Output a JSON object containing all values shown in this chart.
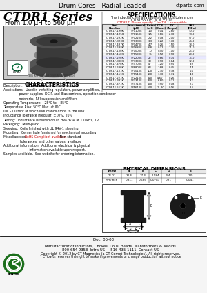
{
  "title_header": "Drum Cores - Radial Leaded",
  "website": "ctparts.com",
  "series_title": "CTDR1 Series",
  "series_subtitle": "From 1.0 μH to 560 μH",
  "specs_title": "SPECIFICATIONS",
  "specs_subtitle1": "The inductance is available at various tolerances",
  "specs_subtitle2": "1.0 to 560μH, M = ±20%",
  "specs_note": "CTDR1Z: Please specify T for TM-1 compatible",
  "characteristics_title": "CHARACTERISTICS",
  "char_lines": [
    "Description:   Radial leaded drum core inductor",
    "Applications:  Used in switching regulators, power amplifiers,",
    "               power supplies, DC-R and Bias controls, operation condenser",
    "               networks, RFI suppression and filters",
    "Operating Temperature:  -25°C to +85°C",
    "Temperature Rise: 50°C Max. at IDC",
    "IDC - Current at which inductance drops to the Max.",
    "Inductance Tolerance Irregular: ±10%, 20%",
    "Testing:  Inductance is tested on an HP4263A at 1.0 kHz, 1V",
    "Packaging:  Multi-pack",
    "Sleeving:  Coils finished with UL 94V-1 sleeving",
    "Mounting:  Center hole furnished for mechanical mounting",
    "Miscellaneous:  RoHS-Compliant available. Non-standard",
    "                tolerances, and other values, available",
    "Additional information:  Additional electrical & physical",
    "                         information available upon request.",
    "Samples available.  See website for ordering information."
  ],
  "phys_dim_title": "PHYSICAL DIMENSIONS",
  "phys_table_headers": [
    "(mm)",
    "A",
    "B",
    "C",
    "D",
    "E"
  ],
  "phys_table_row1": [
    "DR-01",
    "20.6",
    "17.4",
    "1.984",
    "5.4",
    "1.0"
  ],
  "phys_table_row2": [
    "mm/inch",
    "0.811",
    "0.685",
    "0.0781",
    "0.21",
    "0.041"
  ],
  "spec_data": [
    [
      "CTDR1F-1R0K",
      "SP01008",
      "1.0",
      "0.14",
      "2.80",
      "90.0"
    ],
    [
      "CTDR1F-1R5K",
      "SP01508",
      "1.5",
      "0.16",
      "2.30",
      "73.0"
    ],
    [
      "CTDR1F-2R2K",
      "SP02208",
      "2.2",
      "0.18",
      "2.00",
      "57.0"
    ],
    [
      "CTDR1F-3R3K",
      "SP03308",
      "3.3",
      "0.22",
      "1.70",
      "46.0"
    ],
    [
      "CTDR1F-4R7K",
      "SP04708",
      "4.7",
      "0.26",
      "1.50",
      "38.0"
    ],
    [
      "CTDR1F-6R8K",
      "SP06808",
      "6.8",
      "0.32",
      "1.30",
      "31.0"
    ],
    [
      "CTDR1F-100K",
      "SP10008",
      "10",
      "0.40",
      "1.10",
      "25.0"
    ],
    [
      "CTDR1F-150K",
      "SP15008",
      "15",
      "0.52",
      "0.90",
      "20.0"
    ],
    [
      "CTDR1F-220K",
      "SP22008",
      "22",
      "0.66",
      "0.75",
      "15.0"
    ],
    [
      "CTDR1F-330K",
      "SP33008",
      "33",
      "0.90",
      "0.64",
      "12.0"
    ],
    [
      "CTDR1F-470K",
      "SP47008",
      "47",
      "1.20",
      "0.55",
      "9.5"
    ],
    [
      "CTDR1F-680K",
      "SP68008",
      "68",
      "1.68",
      "0.45",
      "7.5"
    ],
    [
      "CTDR1F-101K",
      "SP10108",
      "100",
      "2.30",
      "0.38",
      "6.0"
    ],
    [
      "CTDR1F-151K",
      "SP15108",
      "150",
      "3.30",
      "0.31",
      "4.8"
    ],
    [
      "CTDR1F-221K",
      "SP22108",
      "220",
      "4.60",
      "0.26",
      "3.9"
    ],
    [
      "CTDR1F-331K",
      "SP33108",
      "330",
      "6.80",
      "0.21",
      "3.2"
    ],
    [
      "CTDR1F-471K",
      "SP47108",
      "470",
      "9.50",
      "0.18",
      "2.7"
    ],
    [
      "CTDR1F-561K",
      "SP56108",
      "560",
      "11.20",
      "0.16",
      "2.4"
    ]
  ],
  "footer_text1": "Manufacturer of Inductors, Chokes, Coils, Beads, Transformers & Toroids",
  "footer_text2": "800-654-9353  Intra-US     516-435-1111  Contact US",
  "footer_text3": "Copyright © 2012 by CT Magnetics (a CT Comet Technologies). All rights reserved.",
  "footer_text4": "* CTiparts reserves the right to make improvements or change production without notice",
  "doc_number": "Doc. 05-03",
  "bg_color": "#ffffff",
  "highlight_color": "#cc0000",
  "header_col_labels": [
    "Part\nNumber",
    "Inductance\n(μH)",
    "L Rated\n(μH)",
    "DCR\n(Ohms)",
    "IDC\n(Amps)",
    "SRF\n(MHz)"
  ]
}
